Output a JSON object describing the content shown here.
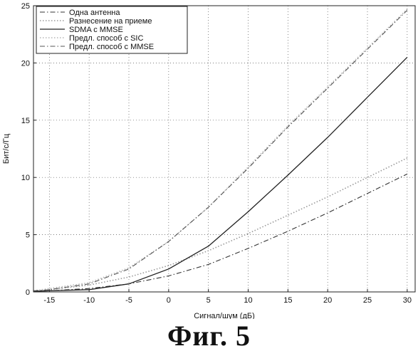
{
  "figure_caption": "Фиг. 5",
  "chart_data": {
    "type": "line",
    "xlabel": "Сигнал/шум (дБ)",
    "ylabel": "Бит/с/Гц",
    "xlim": [
      -17,
      31
    ],
    "ylim": [
      0,
      25
    ],
    "xticks": [
      -15,
      -10,
      -5,
      0,
      5,
      10,
      15,
      20,
      25,
      30
    ],
    "yticks": [
      0,
      5,
      10,
      15,
      20,
      25
    ],
    "grid": true,
    "legend_position": "top-left",
    "x": [
      -17,
      -15,
      -10,
      -5,
      0,
      5,
      10,
      15,
      20,
      25,
      30
    ],
    "series": [
      {
        "name": "Одна антенна",
        "style": "dashdot",
        "color": "#333333",
        "values": [
          0.05,
          0.1,
          0.3,
          0.7,
          1.4,
          2.4,
          3.8,
          5.3,
          6.9,
          8.6,
          10.3
        ]
      },
      {
        "name": "Разнесение на приеме",
        "style": "dotted",
        "color": "#9a9a9a",
        "values": [
          0.1,
          0.2,
          0.6,
          1.3,
          2.3,
          3.6,
          5.1,
          6.7,
          8.3,
          10.0,
          11.7
        ]
      },
      {
        "name": "SDMA с MMSE",
        "style": "solid",
        "color": "#222222",
        "values": [
          0.05,
          0.1,
          0.2,
          0.7,
          2.0,
          4.0,
          7.0,
          10.2,
          13.5,
          17.0,
          20.5
        ]
      },
      {
        "name": "Предл. способ с SIC",
        "style": "dotted",
        "color": "#b5b5b5",
        "values": [
          0.1,
          0.3,
          0.8,
          2.1,
          4.4,
          7.4,
          10.9,
          14.5,
          17.9,
          21.3,
          24.7
        ]
      },
      {
        "name": "Предл. способ с MMSE",
        "style": "dashdot",
        "color": "#555555",
        "values": [
          0.1,
          0.2,
          0.7,
          2.0,
          4.4,
          7.4,
          10.8,
          14.4,
          17.8,
          21.2,
          24.6
        ]
      }
    ]
  }
}
